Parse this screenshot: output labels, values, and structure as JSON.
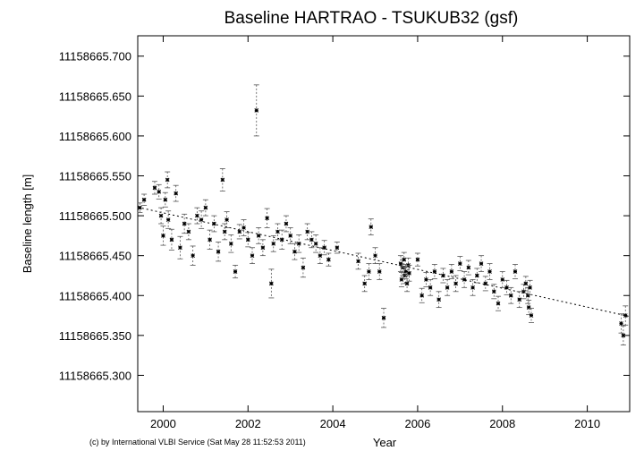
{
  "chart_data": {
    "type": "scatter",
    "title": "Baseline HARTRAO - TSUKUB32 (gsf)",
    "xlabel": "Year",
    "ylabel": "Baseline length [m]",
    "xlim": [
      1999.4,
      2011.0
    ],
    "ylim": [
      11158665.2545,
      11158665.7255
    ],
    "x_ticks": [
      2000,
      2002,
      2004,
      2006,
      2008,
      2010
    ],
    "x_tick_labels": [
      "2000",
      "2002",
      "2004",
      "2006",
      "2008",
      "2010"
    ],
    "y_ticks": [
      11158665.3,
      11158665.35,
      11158665.4,
      11158665.45,
      11158665.5,
      11158665.55,
      11158665.6,
      11158665.65,
      11158665.7
    ],
    "y_tick_labels": [
      "11158665.300",
      "11158665.350",
      "11158665.400",
      "11158665.450",
      "11158665.500",
      "11158665.550",
      "11158665.600",
      "11158665.650",
      "11158665.700"
    ],
    "grid": false,
    "trend_line": {
      "x": [
        1999.4,
        2011.0
      ],
      "y": [
        11158665.5107,
        11158665.3737
      ]
    },
    "series": [
      {
        "marker": "*",
        "errorbars": true,
        "points": [
          {
            "x": 1999.45,
            "y": 11158665.51,
            "err": 0.006
          },
          {
            "x": 1999.55,
            "y": 11158665.52,
            "err": 0.007
          },
          {
            "x": 1999.8,
            "y": 11158665.535,
            "err": 0.008
          },
          {
            "x": 1999.9,
            "y": 11158665.53,
            "err": 0.009
          },
          {
            "x": 1999.95,
            "y": 11158665.5,
            "err": 0.01
          },
          {
            "x": 2000.0,
            "y": 11158665.475,
            "err": 0.012
          },
          {
            "x": 2000.05,
            "y": 11158665.52,
            "err": 0.009
          },
          {
            "x": 2000.1,
            "y": 11158665.545,
            "err": 0.01
          },
          {
            "x": 2000.12,
            "y": 11158665.495,
            "err": 0.011
          },
          {
            "x": 2000.2,
            "y": 11158665.47,
            "err": 0.013
          },
          {
            "x": 2000.3,
            "y": 11158665.528,
            "err": 0.01
          },
          {
            "x": 2000.4,
            "y": 11158665.46,
            "err": 0.014
          },
          {
            "x": 2000.5,
            "y": 11158665.49,
            "err": 0.012
          },
          {
            "x": 2000.6,
            "y": 11158665.48,
            "err": 0.01
          },
          {
            "x": 2000.7,
            "y": 11158665.45,
            "err": 0.012
          },
          {
            "x": 2000.8,
            "y": 11158665.5,
            "err": 0.01
          },
          {
            "x": 2000.9,
            "y": 11158665.495,
            "err": 0.011
          },
          {
            "x": 2001.0,
            "y": 11158665.51,
            "err": 0.01
          },
          {
            "x": 2001.1,
            "y": 11158665.47,
            "err": 0.012
          },
          {
            "x": 2001.2,
            "y": 11158665.49,
            "err": 0.01
          },
          {
            "x": 2001.3,
            "y": 11158665.455,
            "err": 0.012
          },
          {
            "x": 2001.4,
            "y": 11158665.545,
            "err": 0.014
          },
          {
            "x": 2001.45,
            "y": 11158665.48,
            "err": 0.01
          },
          {
            "x": 2001.5,
            "y": 11158665.495,
            "err": 0.01
          },
          {
            "x": 2001.6,
            "y": 11158665.465,
            "err": 0.011
          },
          {
            "x": 2001.7,
            "y": 11158665.43,
            "err": 0.008
          },
          {
            "x": 2001.8,
            "y": 11158665.48,
            "err": 0.009
          },
          {
            "x": 2001.9,
            "y": 11158665.485,
            "err": 0.01
          },
          {
            "x": 2002.0,
            "y": 11158665.47,
            "err": 0.009
          },
          {
            "x": 2002.1,
            "y": 11158665.45,
            "err": 0.01
          },
          {
            "x": 2002.2,
            "y": 11158665.632,
            "err": 0.032
          },
          {
            "x": 2002.25,
            "y": 11158665.475,
            "err": 0.01
          },
          {
            "x": 2002.35,
            "y": 11158665.46,
            "err": 0.01
          },
          {
            "x": 2002.45,
            "y": 11158665.497,
            "err": 0.012
          },
          {
            "x": 2002.55,
            "y": 11158665.415,
            "err": 0.018
          },
          {
            "x": 2002.6,
            "y": 11158665.465,
            "err": 0.01
          },
          {
            "x": 2002.7,
            "y": 11158665.48,
            "err": 0.01
          },
          {
            "x": 2002.8,
            "y": 11158665.47,
            "err": 0.012
          },
          {
            "x": 2002.9,
            "y": 11158665.49,
            "err": 0.01
          },
          {
            "x": 2003.0,
            "y": 11158665.475,
            "err": 0.01
          },
          {
            "x": 2003.1,
            "y": 11158665.455,
            "err": 0.01
          },
          {
            "x": 2003.2,
            "y": 11158665.465,
            "err": 0.011
          },
          {
            "x": 2003.3,
            "y": 11158665.435,
            "err": 0.012
          },
          {
            "x": 2003.4,
            "y": 11158665.48,
            "err": 0.01
          },
          {
            "x": 2003.5,
            "y": 11158665.47,
            "err": 0.01
          },
          {
            "x": 2003.6,
            "y": 11158665.465,
            "err": 0.011
          },
          {
            "x": 2003.7,
            "y": 11158665.45,
            "err": 0.01
          },
          {
            "x": 2003.8,
            "y": 11158665.46,
            "err": 0.009
          },
          {
            "x": 2003.9,
            "y": 11158665.445,
            "err": 0.008
          },
          {
            "x": 2004.1,
            "y": 11158665.46,
            "err": 0.007
          },
          {
            "x": 2004.6,
            "y": 11158665.443,
            "err": 0.01
          },
          {
            "x": 2004.75,
            "y": 11158665.415,
            "err": 0.01
          },
          {
            "x": 2004.85,
            "y": 11158665.43,
            "err": 0.01
          },
          {
            "x": 2004.9,
            "y": 11158665.486,
            "err": 0.01
          },
          {
            "x": 2005.0,
            "y": 11158665.45,
            "err": 0.01
          },
          {
            "x": 2005.1,
            "y": 11158665.43,
            "err": 0.01
          },
          {
            "x": 2005.2,
            "y": 11158665.372,
            "err": 0.012
          },
          {
            "x": 2005.6,
            "y": 11158665.44,
            "err": 0.01
          },
          {
            "x": 2005.62,
            "y": 11158665.42,
            "err": 0.009
          },
          {
            "x": 2005.65,
            "y": 11158665.435,
            "err": 0.01
          },
          {
            "x": 2005.68,
            "y": 11158665.445,
            "err": 0.009
          },
          {
            "x": 2005.7,
            "y": 11158665.425,
            "err": 0.01
          },
          {
            "x": 2005.72,
            "y": 11158665.43,
            "err": 0.009
          },
          {
            "x": 2005.75,
            "y": 11158665.415,
            "err": 0.01
          },
          {
            "x": 2005.78,
            "y": 11158665.438,
            "err": 0.009
          },
          {
            "x": 2005.8,
            "y": 11158665.428,
            "err": 0.01
          },
          {
            "x": 2006.0,
            "y": 11158665.445,
            "err": 0.008
          },
          {
            "x": 2006.1,
            "y": 11158665.4,
            "err": 0.009
          },
          {
            "x": 2006.2,
            "y": 11158665.42,
            "err": 0.009
          },
          {
            "x": 2006.3,
            "y": 11158665.41,
            "err": 0.01
          },
          {
            "x": 2006.4,
            "y": 11158665.43,
            "err": 0.009
          },
          {
            "x": 2006.5,
            "y": 11158665.395,
            "err": 0.01
          },
          {
            "x": 2006.6,
            "y": 11158665.425,
            "err": 0.009
          },
          {
            "x": 2006.7,
            "y": 11158665.41,
            "err": 0.01
          },
          {
            "x": 2006.8,
            "y": 11158665.43,
            "err": 0.009
          },
          {
            "x": 2006.9,
            "y": 11158665.415,
            "err": 0.01
          },
          {
            "x": 2007.0,
            "y": 11158665.44,
            "err": 0.009
          },
          {
            "x": 2007.1,
            "y": 11158665.42,
            "err": 0.01
          },
          {
            "x": 2007.2,
            "y": 11158665.435,
            "err": 0.009
          },
          {
            "x": 2007.3,
            "y": 11158665.41,
            "err": 0.01
          },
          {
            "x": 2007.4,
            "y": 11158665.425,
            "err": 0.009
          },
          {
            "x": 2007.5,
            "y": 11158665.44,
            "err": 0.01
          },
          {
            "x": 2007.6,
            "y": 11158665.415,
            "err": 0.009
          },
          {
            "x": 2007.7,
            "y": 11158665.43,
            "err": 0.01
          },
          {
            "x": 2007.8,
            "y": 11158665.405,
            "err": 0.009
          },
          {
            "x": 2007.9,
            "y": 11158665.39,
            "err": 0.009
          },
          {
            "x": 2008.0,
            "y": 11158665.42,
            "err": 0.01
          },
          {
            "x": 2008.1,
            "y": 11158665.41,
            "err": 0.009
          },
          {
            "x": 2008.2,
            "y": 11158665.4,
            "err": 0.01
          },
          {
            "x": 2008.3,
            "y": 11158665.43,
            "err": 0.009
          },
          {
            "x": 2008.4,
            "y": 11158665.395,
            "err": 0.01
          },
          {
            "x": 2008.5,
            "y": 11158665.405,
            "err": 0.009
          },
          {
            "x": 2008.55,
            "y": 11158665.415,
            "err": 0.009
          },
          {
            "x": 2008.6,
            "y": 11158665.4,
            "err": 0.01
          },
          {
            "x": 2008.62,
            "y": 11158665.385,
            "err": 0.009
          },
          {
            "x": 2008.65,
            "y": 11158665.41,
            "err": 0.009
          },
          {
            "x": 2008.68,
            "y": 11158665.375,
            "err": 0.009
          },
          {
            "x": 2010.8,
            "y": 11158665.365,
            "err": 0.012
          },
          {
            "x": 2010.85,
            "y": 11158665.35,
            "err": 0.012
          },
          {
            "x": 2010.9,
            "y": 11158665.375,
            "err": 0.012
          }
        ]
      }
    ]
  },
  "footer": {
    "credit": "(c) by International VLBI Service (Sat May 28 11:52:53 2011)"
  }
}
